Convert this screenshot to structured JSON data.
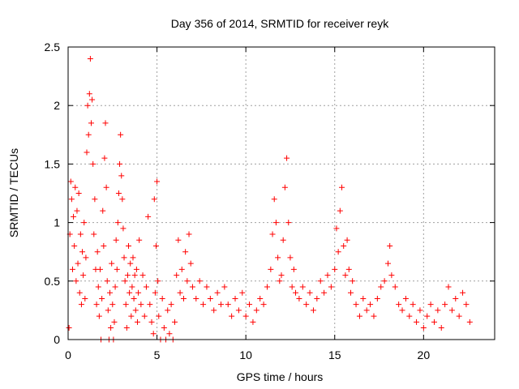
{
  "chart_data": {
    "type": "scatter",
    "title": "Day 356 of 2014, SRMTID for receiver reyk",
    "xlabel": "GPS time / hours",
    "ylabel": "SRMTID / TECUs",
    "xlim": [
      0,
      24
    ],
    "ylim": [
      0,
      2.5
    ],
    "xticks": [
      0,
      5,
      10,
      15,
      20
    ],
    "xtick_labels": [
      "0",
      "5",
      "10",
      "15",
      "20"
    ],
    "yticks": [
      0,
      0.5,
      1,
      1.5,
      2,
      2.5
    ],
    "ytick_labels": [
      "0",
      "0.5",
      "1",
      "1.5",
      "2",
      "2.5"
    ],
    "grid": true,
    "marker": "plus",
    "series": [
      {
        "name": "reyk",
        "color": "#ff0000",
        "points": [
          [
            0.05,
            0.1
          ],
          [
            0.1,
            0.9
          ],
          [
            0.15,
            1.35
          ],
          [
            0.2,
            1.2
          ],
          [
            0.25,
            0.6
          ],
          [
            0.3,
            1.05
          ],
          [
            0.35,
            0.8
          ],
          [
            0.4,
            1.3
          ],
          [
            0.45,
            0.5
          ],
          [
            0.5,
            1.1
          ],
          [
            0.55,
            0.65
          ],
          [
            0.6,
            1.25
          ],
          [
            0.65,
            0.4
          ],
          [
            0.7,
            0.9
          ],
          [
            0.75,
            0.3
          ],
          [
            0.8,
            0.75
          ],
          [
            0.85,
            0.55
          ],
          [
            0.9,
            1.0
          ],
          [
            0.95,
            0.35
          ],
          [
            1.0,
            0.7
          ],
          [
            1.05,
            1.6
          ],
          [
            1.1,
            2.0
          ],
          [
            1.15,
            1.75
          ],
          [
            1.2,
            2.1
          ],
          [
            1.25,
            2.4
          ],
          [
            1.3,
            1.85
          ],
          [
            1.35,
            2.05
          ],
          [
            1.4,
            1.5
          ],
          [
            1.45,
            0.9
          ],
          [
            1.5,
            1.2
          ],
          [
            1.55,
            0.6
          ],
          [
            1.6,
            0.3
          ],
          [
            1.65,
            0.75
          ],
          [
            1.7,
            0.45
          ],
          [
            1.75,
            0.2
          ],
          [
            1.8,
            0.6
          ],
          [
            1.85,
            0.0
          ],
          [
            1.9,
            0.35
          ],
          [
            1.95,
            1.1
          ],
          [
            2.0,
            0.8
          ],
          [
            2.05,
            1.55
          ],
          [
            2.1,
            1.85
          ],
          [
            2.15,
            1.3
          ],
          [
            2.2,
            0.5
          ],
          [
            2.25,
            0.25
          ],
          [
            2.3,
            0.0
          ],
          [
            2.35,
            0.4
          ],
          [
            2.4,
            0.1
          ],
          [
            2.45,
            0.65
          ],
          [
            2.5,
            0.3
          ],
          [
            2.55,
            0.0
          ],
          [
            2.6,
            0.15
          ],
          [
            2.65,
            0.45
          ],
          [
            2.7,
            0.85
          ],
          [
            2.75,
            0.6
          ],
          [
            2.8,
            1.0
          ],
          [
            2.85,
            1.25
          ],
          [
            2.9,
            1.5
          ],
          [
            2.95,
            1.75
          ],
          [
            3.0,
            1.4
          ],
          [
            3.05,
            1.2
          ],
          [
            3.1,
            0.95
          ],
          [
            3.15,
            0.7
          ],
          [
            3.2,
            0.5
          ],
          [
            3.25,
            0.3
          ],
          [
            3.3,
            0.1
          ],
          [
            3.35,
            0.55
          ],
          [
            3.4,
            0.8
          ],
          [
            3.45,
            0.4
          ],
          [
            3.5,
            0.65
          ],
          [
            3.55,
            0.2
          ],
          [
            3.6,
            0.45
          ],
          [
            3.65,
            0.7
          ],
          [
            3.7,
            0.35
          ],
          [
            3.75,
            0.55
          ],
          [
            3.8,
            0.25
          ],
          [
            3.85,
            0.6
          ],
          [
            3.9,
            0.15
          ],
          [
            3.95,
            0.4
          ],
          [
            4.0,
            0.85
          ],
          [
            4.1,
            0.3
          ],
          [
            4.2,
            0.55
          ],
          [
            4.3,
            0.2
          ],
          [
            4.4,
            0.45
          ],
          [
            4.5,
            1.05
          ],
          [
            4.6,
            0.3
          ],
          [
            4.7,
            0.15
          ],
          [
            4.8,
            0.05
          ],
          [
            4.85,
            1.2
          ],
          [
            4.9,
            0.4
          ],
          [
            4.95,
            0.8
          ],
          [
            5.0,
            1.35
          ],
          [
            5.05,
            0.5
          ],
          [
            5.1,
            0.2
          ],
          [
            5.2,
            0.0
          ],
          [
            5.3,
            0.35
          ],
          [
            5.4,
            0.1
          ],
          [
            5.5,
            0.0
          ],
          [
            5.6,
            0.25
          ],
          [
            5.7,
            0.05
          ],
          [
            5.8,
            0.3
          ],
          [
            5.9,
            0.0
          ],
          [
            6.0,
            0.15
          ],
          [
            6.1,
            0.55
          ],
          [
            6.2,
            0.85
          ],
          [
            6.3,
            0.4
          ],
          [
            6.4,
            0.6
          ],
          [
            6.5,
            0.35
          ],
          [
            6.6,
            0.75
          ],
          [
            6.7,
            0.5
          ],
          [
            6.8,
            0.9
          ],
          [
            6.9,
            0.65
          ],
          [
            7.0,
            0.45
          ],
          [
            7.2,
            0.35
          ],
          [
            7.4,
            0.5
          ],
          [
            7.6,
            0.3
          ],
          [
            7.8,
            0.45
          ],
          [
            8.0,
            0.35
          ],
          [
            8.2,
            0.25
          ],
          [
            8.4,
            0.4
          ],
          [
            8.6,
            0.3
          ],
          [
            8.8,
            0.45
          ],
          [
            9.0,
            0.3
          ],
          [
            9.2,
            0.2
          ],
          [
            9.4,
            0.35
          ],
          [
            9.6,
            0.25
          ],
          [
            9.8,
            0.4
          ],
          [
            10.0,
            0.2
          ],
          [
            10.2,
            0.3
          ],
          [
            10.4,
            0.15
          ],
          [
            10.6,
            0.25
          ],
          [
            10.8,
            0.35
          ],
          [
            11.0,
            0.3
          ],
          [
            11.2,
            0.45
          ],
          [
            11.4,
            0.6
          ],
          [
            11.5,
            0.9
          ],
          [
            11.6,
            1.2
          ],
          [
            11.7,
            1.0
          ],
          [
            11.8,
            0.7
          ],
          [
            11.9,
            0.5
          ],
          [
            12.0,
            0.55
          ],
          [
            12.1,
            0.85
          ],
          [
            12.2,
            1.3
          ],
          [
            12.3,
            1.55
          ],
          [
            12.4,
            1.0
          ],
          [
            12.5,
            0.7
          ],
          [
            12.6,
            0.45
          ],
          [
            12.7,
            0.6
          ],
          [
            12.8,
            0.4
          ],
          [
            13.0,
            0.35
          ],
          [
            13.2,
            0.45
          ],
          [
            13.4,
            0.3
          ],
          [
            13.6,
            0.4
          ],
          [
            13.8,
            0.25
          ],
          [
            14.0,
            0.35
          ],
          [
            14.2,
            0.5
          ],
          [
            14.4,
            0.4
          ],
          [
            14.6,
            0.55
          ],
          [
            14.8,
            0.45
          ],
          [
            15.0,
            0.6
          ],
          [
            15.1,
            0.95
          ],
          [
            15.2,
            0.75
          ],
          [
            15.3,
            1.1
          ],
          [
            15.4,
            1.3
          ],
          [
            15.5,
            0.8
          ],
          [
            15.6,
            0.55
          ],
          [
            15.7,
            0.85
          ],
          [
            15.8,
            0.6
          ],
          [
            15.9,
            0.4
          ],
          [
            16.0,
            0.5
          ],
          [
            16.2,
            0.3
          ],
          [
            16.4,
            0.2
          ],
          [
            16.6,
            0.35
          ],
          [
            16.8,
            0.25
          ],
          [
            17.0,
            0.3
          ],
          [
            17.2,
            0.2
          ],
          [
            17.4,
            0.35
          ],
          [
            17.6,
            0.45
          ],
          [
            17.8,
            0.5
          ],
          [
            18.0,
            0.65
          ],
          [
            18.1,
            0.8
          ],
          [
            18.2,
            0.55
          ],
          [
            18.4,
            0.45
          ],
          [
            18.6,
            0.3
          ],
          [
            18.8,
            0.25
          ],
          [
            19.0,
            0.35
          ],
          [
            19.2,
            0.2
          ],
          [
            19.4,
            0.3
          ],
          [
            19.6,
            0.15
          ],
          [
            19.8,
            0.25
          ],
          [
            20.0,
            0.1
          ],
          [
            20.2,
            0.2
          ],
          [
            20.4,
            0.3
          ],
          [
            20.6,
            0.15
          ],
          [
            20.8,
            0.25
          ],
          [
            21.0,
            0.1
          ],
          [
            21.2,
            0.3
          ],
          [
            21.4,
            0.45
          ],
          [
            21.6,
            0.25
          ],
          [
            21.8,
            0.35
          ],
          [
            22.0,
            0.2
          ],
          [
            22.2,
            0.4
          ],
          [
            22.4,
            0.3
          ],
          [
            22.6,
            0.15
          ]
        ]
      }
    ]
  }
}
